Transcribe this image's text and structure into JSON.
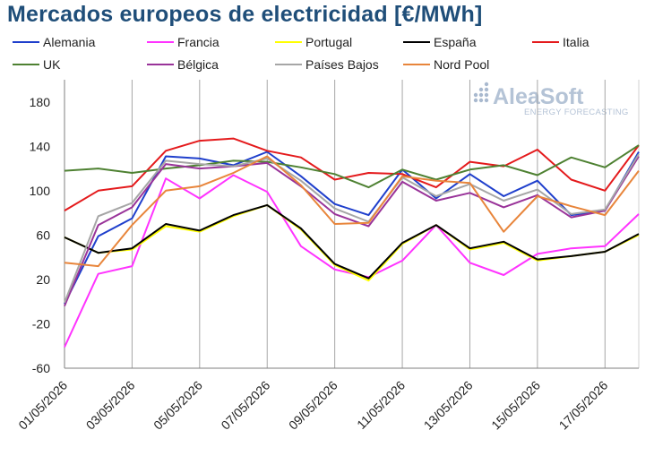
{
  "title": "Mercados europeos de electricidad [€/MWh]",
  "watermark": {
    "brand": "AleaSoft",
    "tagline": "ENERGY FORECASTING"
  },
  "chart_data": {
    "type": "line",
    "title": "Mercados europeos de electricidad [€/MWh]",
    "ylim": [
      -60,
      200
    ],
    "yticks": [
      -60,
      -20,
      20,
      60,
      100,
      140,
      180
    ],
    "grid": "vertical every 2 days",
    "legend_position": "top",
    "x": [
      "01/05/2026",
      "02/05/2026",
      "03/05/2026",
      "04/05/2026",
      "05/05/2026",
      "06/05/2026",
      "07/05/2026",
      "08/05/2026",
      "09/05/2026",
      "10/05/2026",
      "11/05/2026",
      "12/05/2026",
      "13/05/2026",
      "14/05/2026",
      "15/05/2026",
      "16/05/2026",
      "17/05/2026",
      "18/05/2026"
    ],
    "xtick_labels": [
      "01/05/2026",
      "03/05/2026",
      "05/05/2026",
      "07/05/2026",
      "09/05/2026",
      "11/05/2026",
      "13/05/2026",
      "15/05/2026",
      "17/05/2026"
    ],
    "series": [
      {
        "name": "Alemania",
        "color": "#1f3fcc",
        "values": [
          -2,
          59,
          75,
          131,
          129,
          123,
          135,
          113,
          88,
          78,
          119,
          93,
          115,
          95,
          109,
          78,
          82,
          135
        ]
      },
      {
        "name": "Francia",
        "color": "#ff33ff",
        "values": [
          -41,
          25,
          32,
          111,
          93,
          114,
          99,
          50,
          29,
          22,
          37,
          69,
          35,
          24,
          43,
          48,
          50,
          79
        ]
      },
      {
        "name": "Portugal",
        "color": "#ffff00",
        "values": [
          58,
          44,
          47,
          68,
          63,
          77,
          87,
          65,
          33,
          19,
          52,
          69,
          47,
          53,
          37,
          41,
          45,
          60
        ]
      },
      {
        "name": "España",
        "color": "#000000",
        "values": [
          58,
          44,
          48,
          70,
          64,
          78,
          87,
          66,
          34,
          21,
          53,
          69,
          48,
          54,
          38,
          41,
          45,
          61
        ]
      },
      {
        "name": "Italia",
        "color": "#e41a1c",
        "values": [
          82,
          100,
          104,
          136,
          145,
          147,
          136,
          130,
          110,
          116,
          115,
          103,
          126,
          122,
          137,
          110,
          100,
          141
        ]
      },
      {
        "name": "UK",
        "color": "#4e8132",
        "values": [
          118,
          120,
          116,
          120,
          123,
          127,
          126,
          121,
          115,
          103,
          119,
          110,
          119,
          123,
          114,
          130,
          121,
          141
        ]
      },
      {
        "name": "Bélgica",
        "color": "#993399",
        "values": [
          -4,
          69,
          85,
          124,
          120,
          122,
          125,
          104,
          79,
          68,
          108,
          91,
          98,
          85,
          96,
          76,
          82,
          131
        ]
      },
      {
        "name": "Países Bajos",
        "color": "#a6a6a6",
        "values": [
          -1,
          77,
          89,
          127,
          124,
          122,
          129,
          109,
          84,
          72,
          112,
          95,
          106,
          91,
          101,
          79,
          83,
          133
        ]
      },
      {
        "name": "Nord Pool",
        "color": "#e8853b",
        "values": [
          35,
          32,
          69,
          100,
          104,
          116,
          131,
          105,
          70,
          71,
          113,
          109,
          107,
          63,
          95,
          86,
          78,
          118
        ]
      }
    ]
  }
}
